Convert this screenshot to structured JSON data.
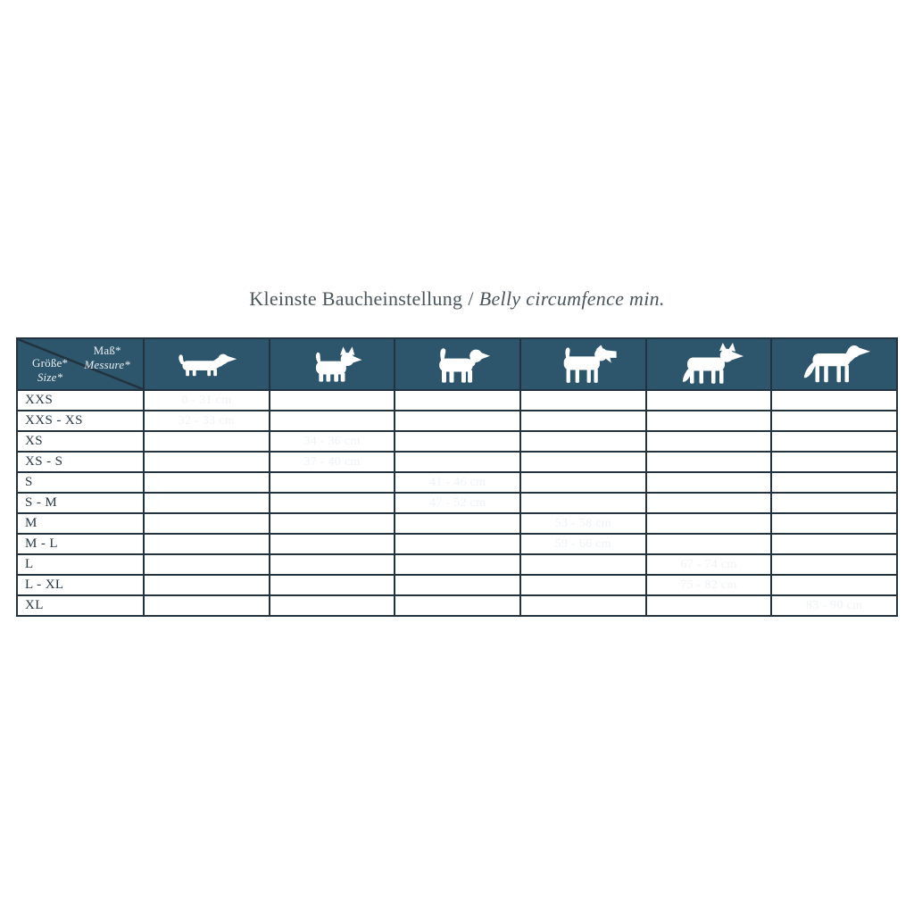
{
  "ui": {
    "title": {
      "text_de": "Kleinste Baucheinstellung",
      "separator": "/",
      "text_en": "Belly circumfence min."
    },
    "corner": {
      "measure_de": "Maß*",
      "measure_en": "Messure*",
      "size_de": "Größe*",
      "size_en": "Size*"
    }
  },
  "colors": {
    "teal": "#2d566c",
    "border": "#22323e",
    "title_text": "#4a555c",
    "label_text": "#273744",
    "value_text": "#eef3f6",
    "dog_icon": "#ffffff"
  },
  "chart_data": {
    "type": "table",
    "title": "Kleinste Baucheinstellung / Belly circumfence min.",
    "unit": "cm",
    "col_header": "Maß* / Messure*",
    "row_header": "Größe* / Size*",
    "columns": [
      {
        "icon": "dachshund-icon"
      },
      {
        "icon": "small-terrier-icon"
      },
      {
        "icon": "beagle-icon"
      },
      {
        "icon": "wire-terrier-icon"
      },
      {
        "icon": "shepherd-icon"
      },
      {
        "icon": "great-dane-icon"
      }
    ],
    "rows": [
      {
        "size": "XXS",
        "value": "0 - 31 cm",
        "min": 0,
        "max": 31,
        "column": 0
      },
      {
        "size": "XXS - XS",
        "value": "32 - 33 cm",
        "min": 32,
        "max": 33,
        "column": 0
      },
      {
        "size": "XS",
        "value": "34 - 36 cm",
        "min": 34,
        "max": 36,
        "column": 1
      },
      {
        "size": "XS - S",
        "value": "37 - 40 cm",
        "min": 37,
        "max": 40,
        "column": 1
      },
      {
        "size": "S",
        "value": "41 - 46 cm",
        "min": 41,
        "max": 46,
        "column": 2
      },
      {
        "size": "S - M",
        "value": "47 - 52 cm",
        "min": 47,
        "max": 52,
        "column": 2
      },
      {
        "size": "M",
        "value": "53 - 58 cm",
        "min": 53,
        "max": 58,
        "column": 3
      },
      {
        "size": "M - L",
        "value": "59 - 66 cm",
        "min": 59,
        "max": 66,
        "column": 3
      },
      {
        "size": "L",
        "value": "67 - 74 cm",
        "min": 67,
        "max": 74,
        "column": 4
      },
      {
        "size": "L - XL",
        "value": "75 - 82 cm",
        "min": 75,
        "max": 82,
        "column": 4
      },
      {
        "size": "XL",
        "value": "83 - 90 cm",
        "min": 83,
        "max": 90,
        "column": 5
      }
    ]
  }
}
